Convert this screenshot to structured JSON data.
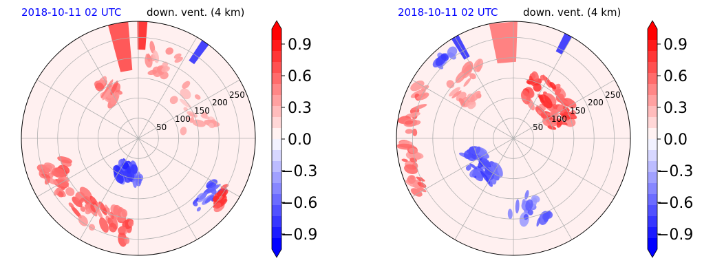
{
  "chart_data": [
    {
      "type": "heatmap",
      "projection": "polar (radar PPI)",
      "title_date": "2018-10-11 02 UTC",
      "title_field": "down. vent. (4 km)",
      "range_rings": [
        50,
        100,
        150,
        200,
        250
      ],
      "rmax": 290,
      "colorbar": {
        "vmin": -1.0,
        "vmax": 1.0,
        "ticks": [
          0.9,
          0.6,
          0.3,
          0.0,
          -0.3,
          -0.6,
          -0.9
        ],
        "tick_labels": [
          "0.9",
          "0.6",
          "0.3",
          "0.0",
          "−0.3",
          "−0.6",
          "−0.9"
        ],
        "extend": "both",
        "colormap": "bwr"
      },
      "features": [
        {
          "value": 0.75,
          "az": 220,
          "r": 220,
          "az_spread": 70,
          "r_spread": 70,
          "n": 70
        },
        {
          "value": 0.65,
          "az": 330,
          "r": 140,
          "az_spread": 20,
          "r_spread": 60,
          "n": 25
        },
        {
          "value": 0.5,
          "az": 20,
          "r": 200,
          "az_spread": 30,
          "r_spread": 70,
          "n": 18
        },
        {
          "value": -0.9,
          "az": 195,
          "r": 90,
          "az_spread": 35,
          "r_spread": 35,
          "n": 35
        },
        {
          "value": -0.8,
          "az": 130,
          "r": 230,
          "az_spread": 20,
          "r_spread": 40,
          "n": 15
        },
        {
          "value": 0.9,
          "az": 125,
          "r": 255,
          "az_spread": 12,
          "r_spread": 25,
          "n": 10
        },
        {
          "value": 0.4,
          "az": 60,
          "r": 150,
          "az_spread": 50,
          "r_spread": 90,
          "n": 18
        }
      ],
      "streaks": [
        {
          "value": 0.8,
          "az": 350,
          "r0": 170,
          "r1": 290,
          "width_deg": 10
        },
        {
          "value": 0.95,
          "az": 2,
          "r0": 220,
          "r1": 290,
          "width_deg": 5
        },
        {
          "value": -0.9,
          "az": 35,
          "r0": 230,
          "r1": 290,
          "width_deg": 4
        }
      ]
    },
    {
      "type": "heatmap",
      "projection": "polar (radar PPI)",
      "title_date": "2018-10-11 02 UTC",
      "title_field": "down. vent. (4 km)",
      "range_rings": [
        50,
        100,
        150,
        200,
        250
      ],
      "rmax": 290,
      "colorbar": {
        "vmin": -1.0,
        "vmax": 1.0,
        "ticks": [
          0.9,
          0.6,
          0.3,
          0.0,
          -0.3,
          -0.6,
          -0.9
        ],
        "tick_labels": [
          "0.9",
          "0.6",
          "0.3",
          "0.0",
          "−0.3",
          "−0.6",
          "−0.9"
        ],
        "extend": "both",
        "colormap": "bwr"
      },
      "features": [
        {
          "value": 0.85,
          "az": 45,
          "r": 130,
          "az_spread": 60,
          "r_spread": 80,
          "n": 60
        },
        {
          "value": 0.7,
          "az": 270,
          "r": 260,
          "az_spread": 60,
          "r_spread": 30,
          "n": 40
        },
        {
          "value": -0.9,
          "az": 230,
          "r": 110,
          "az_spread": 50,
          "r_spread": 50,
          "n": 45
        },
        {
          "value": -0.7,
          "az": 170,
          "r": 180,
          "az_spread": 30,
          "r_spread": 80,
          "n": 18
        },
        {
          "value": 0.5,
          "az": 320,
          "r": 170,
          "az_spread": 30,
          "r_spread": 80,
          "n": 20
        },
        {
          "value": -0.8,
          "az": 320,
          "r": 260,
          "az_spread": 12,
          "r_spread": 30,
          "n": 10
        }
      ],
      "streaks": [
        {
          "value": 0.6,
          "az": 355,
          "r0": 190,
          "r1": 290,
          "width_deg": 14
        },
        {
          "value": -0.9,
          "az": 330,
          "r0": 230,
          "r1": 290,
          "width_deg": 4
        },
        {
          "value": -0.9,
          "az": 28,
          "r0": 240,
          "r1": 290,
          "width_deg": 4
        }
      ]
    }
  ]
}
